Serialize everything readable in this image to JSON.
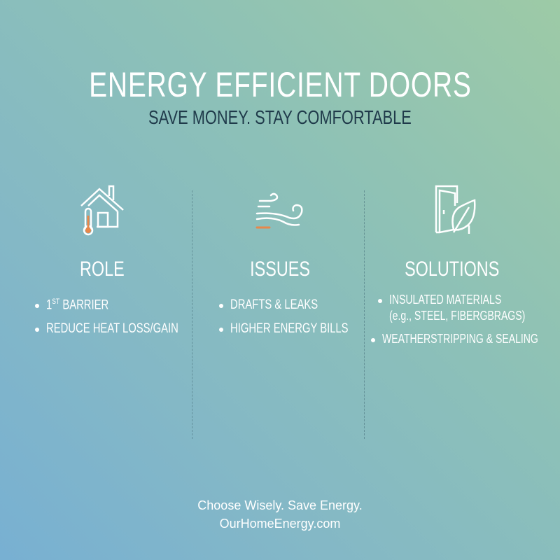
{
  "header": {
    "title": "ENERGY EFFICIENT DOORS",
    "subtitle": "SAVE MONEY. STAY COMFORTABLE"
  },
  "columns": [
    {
      "icon": "house-thermometer-icon",
      "heading": "ROLE",
      "items": [
        "1",
        "ST",
        "BARRIER",
        "REDUCE HEAT LOSS/GAIN"
      ]
    },
    {
      "icon": "wind-icon",
      "heading": "ISSUES",
      "items": [
        "DRAFTS & LEAKS",
        "HIGHER ENERGY BILLS"
      ]
    },
    {
      "icon": "door-leaf-icon",
      "heading": "SOLUTIONS",
      "items": [
        "INSULATED MATERIALS",
        "(e.g., STEEL, FIBERGBRAGS)",
        "WEATHERSTRIPPING & SEALING"
      ]
    }
  ],
  "footer": {
    "tagline": "Choose Wisely. Save Energy.",
    "website": "OurHomeEnergy.com"
  },
  "colors": {
    "accent": "#e8874a",
    "subtitle": "#1f3a4a"
  }
}
